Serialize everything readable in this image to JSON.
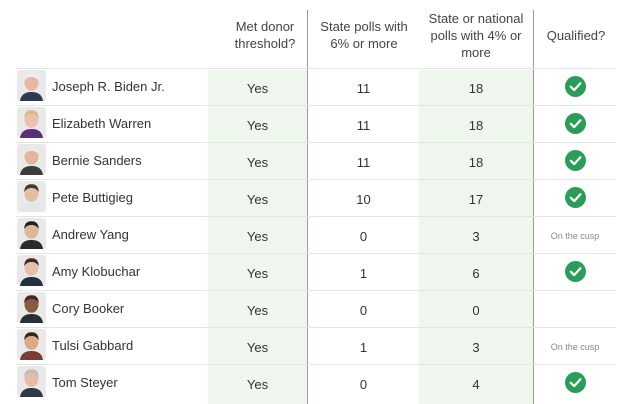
{
  "columns": {
    "donor": "Met donor threshold?",
    "state_polls": "State polls with 6% or more",
    "national_polls": "State or national polls with 4% or more",
    "qualified": "Qualified?"
  },
  "rows": [
    {
      "name": "Joseph R. Biden Jr.",
      "donor": "Yes",
      "state_polls": "11",
      "national_polls": "18",
      "qualified": "check-icon",
      "avatar": {
        "skin": "#e4b9a0",
        "hair": "#eeeeee",
        "shirt": "#2d3a55"
      }
    },
    {
      "name": "Elizabeth Warren",
      "donor": "Yes",
      "state_polls": "11",
      "national_polls": "18",
      "qualified": "check-icon",
      "avatar": {
        "skin": "#e8c2ab",
        "hair": "#d7b98a",
        "shirt": "#5b2e7a"
      }
    },
    {
      "name": "Bernie Sanders",
      "donor": "Yes",
      "state_polls": "11",
      "national_polls": "18",
      "qualified": "check-icon",
      "avatar": {
        "skin": "#e4b59c",
        "hair": "#e9e9e9",
        "shirt": "#3c3c3c"
      }
    },
    {
      "name": "Pete Buttigieg",
      "donor": "Yes",
      "state_polls": "10",
      "national_polls": "17",
      "qualified": "check-icon",
      "avatar": {
        "skin": "#e6bca3",
        "hair": "#4a3526",
        "shirt": "#dfe6ee"
      }
    },
    {
      "name": "Andrew Yang",
      "donor": "Yes",
      "state_polls": "0",
      "national_polls": "3",
      "qualified": "On the cusp",
      "avatar": {
        "skin": "#e0b896",
        "hair": "#222222",
        "shirt": "#2a2a2a"
      }
    },
    {
      "name": "Amy Klobuchar",
      "donor": "Yes",
      "state_polls": "1",
      "national_polls": "6",
      "qualified": "check-icon",
      "avatar": {
        "skin": "#e8c0a6",
        "hair": "#3a2a22",
        "shirt": "#24303f"
      }
    },
    {
      "name": "Cory Booker",
      "donor": "Yes",
      "state_polls": "0",
      "national_polls": "0",
      "qualified": "",
      "avatar": {
        "skin": "#8a5a3c",
        "hair": "#3a2a22",
        "shirt": "#2b2f3a"
      }
    },
    {
      "name": "Tulsi Gabbard",
      "donor": "Yes",
      "state_polls": "1",
      "national_polls": "3",
      "qualified": "On the cusp",
      "avatar": {
        "skin": "#d9a98a",
        "hair": "#3d2418",
        "shirt": "#7a3b34"
      }
    },
    {
      "name": "Tom Steyer",
      "donor": "Yes",
      "state_polls": "0",
      "national_polls": "4",
      "qualified": "check-icon",
      "avatar": {
        "skin": "#e6bca3",
        "hair": "#bdbdbd",
        "shirt": "#2e3a4a"
      }
    }
  ],
  "colors": {
    "check": "#2a9d58",
    "shade": "#eef6ee",
    "divider": "#9a9a9a"
  }
}
